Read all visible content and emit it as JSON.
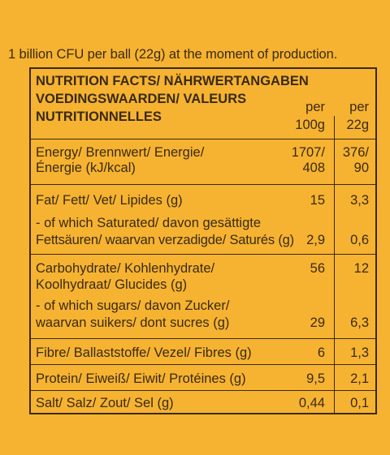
{
  "intro": "1 billion CFU per ball (22g) at the moment of production.",
  "header": {
    "title_line1": "NUTRITION FACTS/ NÄHRWERTANGABEN",
    "title_line2": "VOEDINGSWAARDEN/ VALEURS",
    "title_line3": "NUTRITIONNELLES",
    "col1_line1": "per",
    "col1_line2": "100g",
    "col2_line1": "per",
    "col2_line2": "22g"
  },
  "rows": {
    "energy": {
      "label_line1": "Energy/ Brennwert/ Energie/",
      "label_line2": "Énergie (kJ/kcal)",
      "per100_line1": "1707/",
      "per100_line2": "408",
      "per22_line1": "376/",
      "per22_line2": "90"
    },
    "fat": {
      "label": "Fat/ Fett/ Vet/ Lipides (g)",
      "per100": "15",
      "per22": "3,3",
      "sub_line1": "- of which Saturated/ davon gesättigte",
      "sub_line2": "Fettsäuren/ waarvan verzadigde/ Saturés (g)",
      "sub_per100": "2,9",
      "sub_per22": "0,6"
    },
    "carb": {
      "label_line1": "Carbohydrate/ Kohlenhydrate/",
      "label_line2": "Koolhydraat/ Glucides (g)",
      "per100": "56",
      "per22": "12",
      "sub_line1": "- of which sugars/ davon Zucker/",
      "sub_line2": "waarvan suikers/ dont sucres (g)",
      "sub_per100": "29",
      "sub_per22": "6,3"
    },
    "fibre": {
      "label": "Fibre/ Ballaststoffe/ Vezel/ Fibres (g)",
      "per100": "6",
      "per22": "1,3"
    },
    "protein": {
      "label": "Protein/ Eiweiß/ Eiwit/ Protéines (g)",
      "per100": "9,5",
      "per22": "2,1"
    },
    "salt": {
      "label": "Salt/ Salz/ Zout/ Sel (g)",
      "per100": "0,44",
      "per22": "0,1"
    }
  }
}
